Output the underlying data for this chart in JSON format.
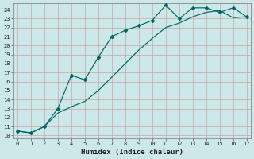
{
  "line1_x": [
    0,
    1,
    2,
    3,
    4,
    5,
    6,
    7,
    8,
    9,
    10,
    11,
    12,
    13,
    14,
    15,
    16,
    17
  ],
  "line1_y": [
    10.5,
    10.3,
    11.0,
    13.0,
    16.7,
    16.2,
    18.7,
    21.0,
    21.7,
    22.2,
    22.8,
    24.5,
    23.0,
    24.2,
    24.2,
    23.7,
    24.2,
    23.2
  ],
  "line2_x": [
    0,
    1,
    2,
    3,
    4,
    5,
    6,
    7,
    8,
    9,
    10,
    11,
    12,
    13,
    14,
    15,
    16,
    17
  ],
  "line2_y": [
    10.5,
    10.3,
    11.0,
    12.5,
    13.2,
    13.8,
    15.0,
    16.5,
    18.0,
    19.5,
    20.8,
    22.0,
    22.5,
    23.2,
    23.7,
    23.9,
    23.1,
    23.2
  ],
  "line_color": "#006666",
  "bg_color": "#cce8e8",
  "grid_color": "#b0d0d0",
  "xlabel": "Humidex (Indice chaleur)",
  "ylim": [
    10,
    24
  ],
  "yticks": [
    10,
    11,
    12,
    13,
    14,
    15,
    16,
    17,
    18,
    19,
    20,
    21,
    22,
    23,
    24
  ],
  "xticks": [
    0,
    1,
    2,
    3,
    4,
    5,
    6,
    7,
    8,
    9,
    10,
    11,
    12,
    13,
    14,
    15,
    16,
    17
  ]
}
